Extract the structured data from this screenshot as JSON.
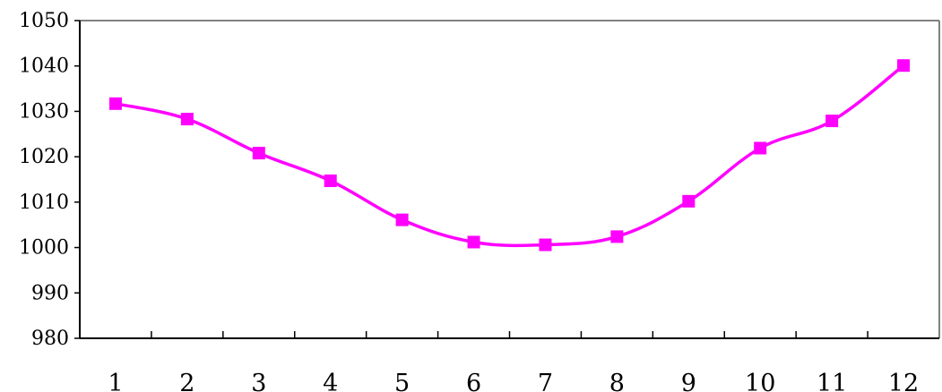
{
  "chart_data": {
    "type": "line",
    "title": "",
    "xlabel": "",
    "ylabel": "",
    "categories": [
      "1",
      "2",
      "3",
      "4",
      "5",
      "6",
      "7",
      "8",
      "9",
      "10",
      "11",
      "12"
    ],
    "series": [
      {
        "values": [
          1031.7,
          1028.3,
          1020.8,
          1014.7,
          1006.1,
          1001.2,
          1000.6,
          1002.4,
          1010.2,
          1021.9,
          1027.9,
          1040.1
        ],
        "color": "#ff00ff",
        "marker": "square"
      }
    ],
    "ylim": [
      980,
      1050
    ],
    "yticks": [
      "980",
      "990",
      "1000",
      "1010",
      "1020",
      "1030",
      "1040",
      "1050"
    ],
    "grid": false,
    "legend": "none",
    "colors": {
      "line": "#ff00ff",
      "axis": "#000000",
      "frame": "#808080"
    }
  }
}
